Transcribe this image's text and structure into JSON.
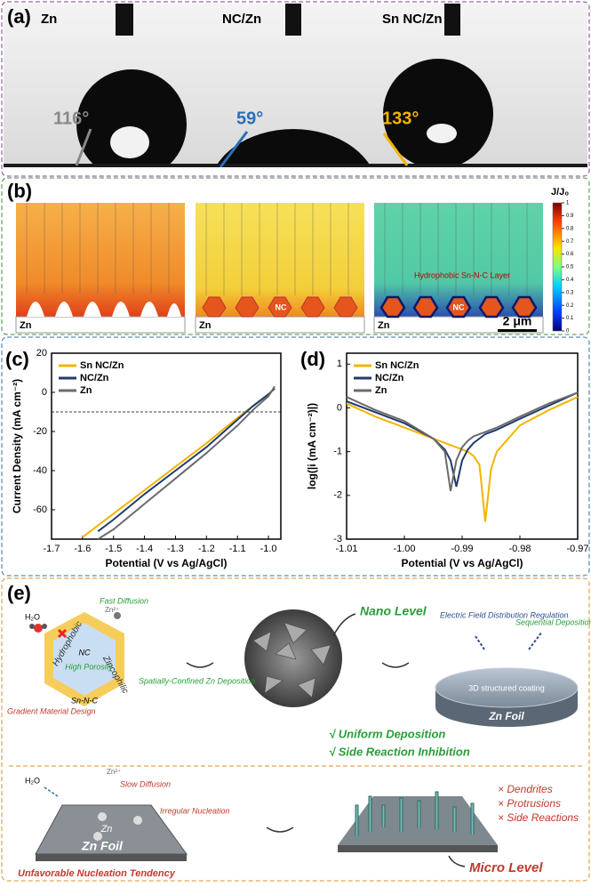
{
  "panels": {
    "a": {
      "label": "(a)",
      "samples": [
        "Zn",
        "NC/Zn",
        "Sn NC/Zn"
      ],
      "angles": [
        "116°",
        "59°",
        "133°"
      ]
    },
    "b": {
      "label": "(b)",
      "substrates": [
        "Zn",
        "Zn",
        "Zn"
      ],
      "nc_labels": [
        "NC",
        "NC"
      ],
      "annotation": "Hydrophobic Sn-N-C Layer",
      "scale_bar": "2 μm",
      "colorbar_title": "J/J₀",
      "colorbar_ticks": [
        0,
        0.1,
        0.2,
        0.3,
        0.4,
        0.5,
        0.6,
        0.7,
        0.8,
        0.9,
        1
      ]
    },
    "e": {
      "label": "(e)",
      "top": {
        "water": "H₂O",
        "ion": "Zn²⁺",
        "fast_diffusion": "Fast Diffusion",
        "zincophilic": "Zincophilic",
        "hydrophobic": "Hydrophobic",
        "core": "NC",
        "shell": "Sn-N-C",
        "porosity": "High Porosity",
        "confined": "Spatially-Confined Zn Deposition",
        "gradient": "Gradient Material Design",
        "nano": "Nano Level",
        "field": "Electric Field Distribution Regulation",
        "sequential": "Sequential Deposition",
        "coating": "3D structured coating",
        "foil": "Zn Foil",
        "benefits": [
          "√ Uniform Deposition",
          "√ Side Reaction Inhibition"
        ]
      },
      "bottom": {
        "water": "H₂O",
        "ion": "Zn²⁺",
        "slow_diffusion": "Slow Diffusion",
        "irregular": "Irregular Nucleation",
        "plate": "Zn Foil",
        "zn": "Zn",
        "tendency": "Unfavorable Nucleation Tendency",
        "problems": [
          "× Dendrites",
          "× Protrusions",
          "× Side Reactions"
        ],
        "micro": "Micro Level"
      }
    }
  },
  "chart_data": [
    {
      "type": "line",
      "title": "(c)",
      "x_label": "Potential (V vs Ag/AgCl)",
      "y_label": "Current Density (mA cm⁻²)",
      "x": [
        -1.6,
        -1.55,
        -1.5,
        -1.4,
        -1.3,
        -1.2,
        -1.1,
        -1.05,
        -1.0,
        -0.98
      ],
      "series": [
        {
          "name": "Sn NC/Zn",
          "color": "#f2b400",
          "values": [
            -74,
            -68,
            -62,
            -50,
            -38,
            -26,
            -13,
            -7,
            -1,
            2
          ]
        },
        {
          "name": "NC/Zn",
          "color": "#1f3b6e",
          "values": [
            null,
            -71,
            -65,
            -52,
            -40,
            -28,
            -14,
            -7,
            -1,
            2
          ]
        },
        {
          "name": "Zn",
          "color": "#6b6b6b",
          "values": [
            null,
            -75,
            -70,
            -57,
            -44,
            -31,
            -17,
            -9,
            -2,
            3
          ]
        }
      ],
      "hline": -10,
      "xlim": [
        -1.7,
        -0.96
      ],
      "xticks": [
        -1.7,
        -1.6,
        -1.5,
        -1.4,
        -1.3,
        -1.2,
        -1.1,
        {
          "value": -1,
          "label": "-1.0"
        }
      ],
      "ylim": [
        -75,
        20
      ],
      "yticks": [
        -60,
        -40,
        -20,
        0,
        20
      ]
    },
    {
      "type": "line",
      "title": "(d)",
      "x_label": "Potential (V vs Ag/AgCl)",
      "y_label": "log(|i (mA cm⁻²)|)",
      "x": [
        -1.01,
        -1.005,
        -1.0,
        -0.995,
        -0.993,
        -0.992,
        -0.991,
        -0.99,
        -0.989,
        -0.988,
        -0.987,
        -0.986,
        -0.985,
        -0.984,
        -0.98,
        -0.975,
        -0.97
      ],
      "series": [
        {
          "name": "Sn NC/Zn",
          "color": "#f2b400",
          "values": [
            0.1,
            -0.2,
            -0.45,
            -0.7,
            -0.8,
            -0.85,
            -0.9,
            -0.95,
            -1.0,
            -1.1,
            -1.3,
            -2.6,
            -1.4,
            -1.0,
            -0.4,
            -0.05,
            0.25
          ]
        },
        {
          "name": "NC/Zn",
          "color": "#1f3b6e",
          "values": [
            0.15,
            -0.1,
            -0.35,
            -0.7,
            -0.95,
            -1.2,
            -1.8,
            -1.2,
            -0.95,
            -0.8,
            -0.7,
            -0.6,
            -0.55,
            -0.5,
            -0.25,
            0.05,
            0.35
          ]
        },
        {
          "name": "Zn",
          "color": "#6b6b6b",
          "values": [
            0.25,
            -0.05,
            -0.3,
            -0.7,
            -1.0,
            -1.9,
            -1.2,
            -0.9,
            -0.75,
            -0.65,
            -0.6,
            -0.55,
            -0.5,
            -0.45,
            -0.2,
            0.1,
            0.35
          ]
        }
      ],
      "xlim": [
        -1.01,
        -0.97
      ],
      "xticks": [
        -1.01,
        {
          "value": -1,
          "label": "-1.00"
        },
        -0.99,
        -0.98,
        -0.97
      ],
      "ylim": [
        -3,
        1.25
      ],
      "yticks": [
        -3,
        -2,
        -1,
        0,
        1
      ]
    }
  ]
}
